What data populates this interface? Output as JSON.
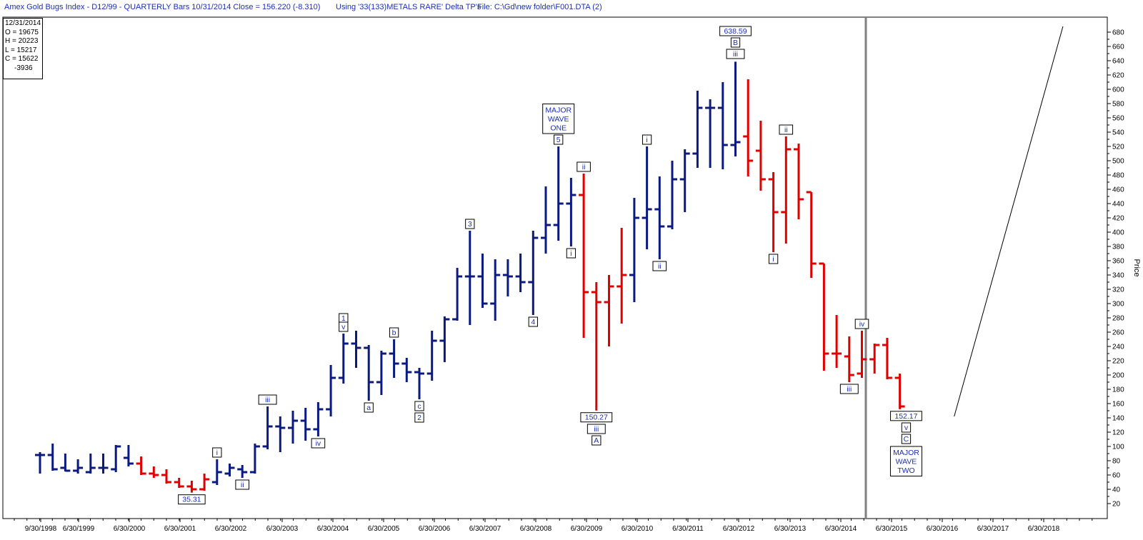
{
  "header": {
    "title": "Amex Gold Bugs Index - D12/99 -  QUARTERLY Bars  10/31/2014 Close = 156.220 (-8.310)",
    "using": "Using '33(133)METALS RARE' Delta TP's",
    "file": "File: C:\\Gd\\new folder\\F001.DTA (2)"
  },
  "ohlc_box": {
    "date": "12/31/2014",
    "open": "O = 19675",
    "high": "H = 20223",
    "low": "L = 15217",
    "close": "C = 15622",
    "change": "-3936"
  },
  "chart_data": {
    "type": "ohlc-bar",
    "ylabel": "Price",
    "ylim": [
      20,
      690
    ],
    "y_ticks": [
      20,
      40,
      60,
      80,
      100,
      120,
      140,
      160,
      180,
      200,
      220,
      240,
      260,
      280,
      300,
      320,
      340,
      360,
      380,
      400,
      420,
      440,
      460,
      480,
      500,
      520,
      540,
      560,
      580,
      600,
      620,
      640,
      660,
      680
    ],
    "x_ticks": [
      "9/30/1998",
      "6/30/1999",
      "6/30/2000",
      "6/30/2001",
      "6/30/2002",
      "6/30/2003",
      "6/30/2004",
      "6/30/2005",
      "6/30/2006",
      "6/30/2007",
      "6/30/2008",
      "6/30/2009",
      "6/30/2010",
      "6/30/2011",
      "6/30/2012",
      "6/30/2013",
      "6/30/2014",
      "6/30/2015",
      "6/30/2016",
      "6/30/2017",
      "6/30/2018"
    ],
    "colors": {
      "up": "#0b1a80",
      "down": "#e00000",
      "divider": "#808080",
      "label": "#1b2fb5"
    },
    "bars": [
      {
        "q": 0,
        "o": 88,
        "h": 92,
        "l": 62,
        "c": 88,
        "color": "up"
      },
      {
        "q": 1,
        "o": 88,
        "h": 104,
        "l": 66,
        "c": 68,
        "color": "up"
      },
      {
        "q": 2,
        "o": 70,
        "h": 90,
        "l": 65,
        "c": 66,
        "color": "up"
      },
      {
        "q": 3,
        "o": 66,
        "h": 82,
        "l": 62,
        "c": 70,
        "color": "up"
      },
      {
        "q": 4,
        "o": 64,
        "h": 90,
        "l": 62,
        "c": 70,
        "color": "up"
      },
      {
        "q": 5,
        "o": 70,
        "h": 90,
        "l": 62,
        "c": 70,
        "color": "up"
      },
      {
        "q": 6,
        "o": 68,
        "h": 102,
        "l": 64,
        "c": 100,
        "color": "up"
      },
      {
        "q": 7,
        "o": 84,
        "h": 102,
        "l": 72,
        "c": 76,
        "color": "up"
      },
      {
        "q": 8,
        "o": 76,
        "h": 86,
        "l": 60,
        "c": 62,
        "color": "down"
      },
      {
        "q": 9,
        "o": 62,
        "h": 72,
        "l": 56,
        "c": 60,
        "color": "down"
      },
      {
        "q": 10,
        "o": 60,
        "h": 68,
        "l": 48,
        "c": 50,
        "color": "down"
      },
      {
        "q": 11,
        "o": 50,
        "h": 56,
        "l": 42,
        "c": 44,
        "color": "down"
      },
      {
        "q": 12,
        "o": 44,
        "h": 52,
        "l": 35.31,
        "c": 40,
        "color": "down"
      },
      {
        "q": 13,
        "o": 40,
        "h": 62,
        "l": 38,
        "c": 54,
        "color": "down"
      },
      {
        "q": 14,
        "o": 50,
        "h": 82,
        "l": 46,
        "c": 64,
        "color": "up"
      },
      {
        "q": 15,
        "o": 62,
        "h": 76,
        "l": 58,
        "c": 70,
        "color": "up"
      },
      {
        "q": 16,
        "o": 68,
        "h": 74,
        "l": 56,
        "c": 64,
        "color": "up"
      },
      {
        "q": 17,
        "o": 64,
        "h": 104,
        "l": 62,
        "c": 100,
        "color": "up"
      },
      {
        "q": 18,
        "o": 100,
        "h": 156,
        "l": 96,
        "c": 128,
        "color": "up"
      },
      {
        "q": 19,
        "o": 128,
        "h": 142,
        "l": 92,
        "c": 126,
        "color": "up"
      },
      {
        "q": 20,
        "o": 126,
        "h": 150,
        "l": 104,
        "c": 136,
        "color": "up"
      },
      {
        "q": 21,
        "o": 136,
        "h": 154,
        "l": 108,
        "c": 124,
        "color": "up"
      },
      {
        "q": 22,
        "o": 124,
        "h": 162,
        "l": 114,
        "c": 152,
        "color": "up"
      },
      {
        "q": 23,
        "o": 152,
        "h": 214,
        "l": 142,
        "c": 196,
        "color": "up"
      },
      {
        "q": 24,
        "o": 196,
        "h": 258,
        "l": 188,
        "c": 244,
        "color": "up"
      },
      {
        "q": 25,
        "o": 244,
        "h": 262,
        "l": 210,
        "c": 238,
        "color": "up"
      },
      {
        "q": 26,
        "o": 238,
        "h": 242,
        "l": 164,
        "c": 190,
        "color": "up"
      },
      {
        "q": 27,
        "o": 190,
        "h": 234,
        "l": 172,
        "c": 230,
        "color": "up"
      },
      {
        "q": 28,
        "o": 230,
        "h": 250,
        "l": 196,
        "c": 216,
        "color": "up"
      },
      {
        "q": 29,
        "o": 216,
        "h": 224,
        "l": 190,
        "c": 204,
        "color": "up"
      },
      {
        "q": 30,
        "o": 204,
        "h": 210,
        "l": 166,
        "c": 202,
        "color": "up"
      },
      {
        "q": 31,
        "o": 202,
        "h": 262,
        "l": 192,
        "c": 248,
        "color": "up"
      },
      {
        "q": 32,
        "o": 248,
        "h": 282,
        "l": 218,
        "c": 278,
        "color": "up"
      },
      {
        "q": 33,
        "o": 278,
        "h": 350,
        "l": 276,
        "c": 338,
        "color": "up"
      },
      {
        "q": 34,
        "o": 338,
        "h": 402,
        "l": 270,
        "c": 338,
        "color": "up"
      },
      {
        "q": 35,
        "o": 338,
        "h": 370,
        "l": 294,
        "c": 300,
        "color": "up"
      },
      {
        "q": 36,
        "o": 300,
        "h": 362,
        "l": 276,
        "c": 340,
        "color": "up"
      },
      {
        "q": 37,
        "o": 340,
        "h": 362,
        "l": 310,
        "c": 338,
        "color": "up"
      },
      {
        "q": 38,
        "o": 338,
        "h": 370,
        "l": 316,
        "c": 330,
        "color": "up"
      },
      {
        "q": 39,
        "o": 330,
        "h": 402,
        "l": 284,
        "c": 392,
        "color": "up"
      },
      {
        "q": 40,
        "o": 392,
        "h": 464,
        "l": 370,
        "c": 410,
        "color": "up"
      },
      {
        "q": 41,
        "o": 410,
        "h": 520,
        "l": 388,
        "c": 440,
        "color": "up"
      },
      {
        "q": 42,
        "o": 440,
        "h": 476,
        "l": 380,
        "c": 452,
        "color": "up"
      },
      {
        "q": 43,
        "o": 452,
        "h": 482,
        "l": 252,
        "c": 316,
        "color": "down"
      },
      {
        "q": 44,
        "o": 316,
        "h": 330,
        "l": 150.27,
        "c": 302,
        "color": "down"
      },
      {
        "q": 45,
        "o": 302,
        "h": 340,
        "l": 240,
        "c": 324,
        "color": "down"
      },
      {
        "q": 46,
        "o": 324,
        "h": 406,
        "l": 272,
        "c": 340,
        "color": "down"
      },
      {
        "q": 47,
        "o": 340,
        "h": 448,
        "l": 302,
        "c": 420,
        "color": "up"
      },
      {
        "q": 48,
        "o": 420,
        "h": 520,
        "l": 376,
        "c": 432,
        "color": "up"
      },
      {
        "q": 49,
        "o": 432,
        "h": 478,
        "l": 362,
        "c": 408,
        "color": "up"
      },
      {
        "q": 50,
        "o": 408,
        "h": 500,
        "l": 404,
        "c": 474,
        "color": "up"
      },
      {
        "q": 51,
        "o": 474,
        "h": 516,
        "l": 428,
        "c": 510,
        "color": "up"
      },
      {
        "q": 52,
        "o": 510,
        "h": 598,
        "l": 490,
        "c": 574,
        "color": "up"
      },
      {
        "q": 53,
        "o": 574,
        "h": 586,
        "l": 490,
        "c": 574,
        "color": "up"
      },
      {
        "q": 54,
        "o": 574,
        "h": 610,
        "l": 488,
        "c": 522,
        "color": "up"
      },
      {
        "q": 55,
        "o": 522,
        "h": 638.59,
        "l": 506,
        "c": 526,
        "color": "up"
      },
      {
        "q": 56,
        "o": 534,
        "h": 614,
        "l": 478,
        "c": 500,
        "color": "down"
      },
      {
        "q": 57,
        "o": 514,
        "h": 556,
        "l": 458,
        "c": 474,
        "color": "down"
      },
      {
        "q": 58,
        "o": 474,
        "h": 484,
        "l": 372,
        "c": 428,
        "color": "down"
      },
      {
        "q": 59,
        "o": 428,
        "h": 534,
        "l": 384,
        "c": 516,
        "color": "down"
      },
      {
        "q": 60,
        "o": 516,
        "h": 524,
        "l": 418,
        "c": 446,
        "color": "down"
      },
      {
        "q": 61,
        "o": 456,
        "h": 456,
        "l": 336,
        "c": 356,
        "color": "down"
      },
      {
        "q": 62,
        "o": 356,
        "h": 356,
        "l": 206,
        "c": 230,
        "color": "down"
      },
      {
        "q": 63,
        "o": 230,
        "h": 284,
        "l": 210,
        "c": 230,
        "color": "down"
      },
      {
        "q": 64,
        "o": 226,
        "h": 254,
        "l": 190,
        "c": 200,
        "color": "down"
      },
      {
        "q": 65,
        "o": 202,
        "h": 262,
        "l": 196,
        "c": 222,
        "color": "down"
      },
      {
        "q": 66,
        "o": 222,
        "h": 244,
        "l": 202,
        "c": 242,
        "color": "down"
      },
      {
        "q": 67,
        "o": 242,
        "h": 252,
        "l": 194,
        "c": 196,
        "color": "down"
      },
      {
        "q": 68,
        "o": 196,
        "h": 202,
        "l": 152.17,
        "c": 156,
        "color": "down"
      }
    ],
    "projection_line": [
      {
        "q": 72.3,
        "y": 142
      },
      {
        "q": 80.9,
        "y": 688
      }
    ],
    "annotations": [
      {
        "text": "35.31",
        "q": 12,
        "y": 35.31,
        "pos": "below"
      },
      {
        "text": "i",
        "q": 14,
        "y": 82,
        "pos": "above"
      },
      {
        "text": "ii",
        "q": 16,
        "y": 56,
        "pos": "below"
      },
      {
        "text": "iii",
        "q": 18,
        "y": 156,
        "pos": "above"
      },
      {
        "text": "iv",
        "q": 22,
        "y": 114,
        "pos": "below"
      },
      {
        "text": "1",
        "q": 24,
        "y": 270,
        "pos": "above"
      },
      {
        "text": "v",
        "q": 24,
        "y": 258,
        "pos": "above"
      },
      {
        "text": "a",
        "q": 26,
        "y": 164,
        "pos": "below"
      },
      {
        "text": "b",
        "q": 28,
        "y": 250,
        "pos": "above"
      },
      {
        "text": "c",
        "q": 30,
        "y": 166,
        "pos": "below"
      },
      {
        "text": "2",
        "q": 30,
        "y": 150,
        "pos": "below"
      },
      {
        "text": "3",
        "q": 34,
        "y": 402,
        "pos": "above"
      },
      {
        "text": "4",
        "q": 39,
        "y": 284,
        "pos": "below"
      },
      {
        "text": "5",
        "q": 41,
        "y": 520,
        "pos": "above"
      },
      {
        "text": "i",
        "q": 42,
        "y": 380,
        "pos": "below"
      },
      {
        "text": "ii",
        "q": 43,
        "y": 482,
        "pos": "above"
      },
      {
        "text": "150.27",
        "q": 44,
        "y": 150.27,
        "pos": "below"
      },
      {
        "text": "iii",
        "q": 44,
        "y": 134,
        "pos": "below"
      },
      {
        "text": "A",
        "q": 44,
        "y": 118,
        "pos": "below"
      },
      {
        "text": "i",
        "q": 48,
        "y": 520,
        "pos": "above"
      },
      {
        "text": "ii",
        "q": 49,
        "y": 362,
        "pos": "below"
      },
      {
        "text": "638.59",
        "q": 55,
        "y": 672,
        "pos": "above"
      },
      {
        "text": "B",
        "q": 55,
        "y": 656,
        "pos": "above"
      },
      {
        "text": "iii",
        "q": 55,
        "y": 640,
        "pos": "above"
      },
      {
        "text": "i",
        "q": 58,
        "y": 372,
        "pos": "below"
      },
      {
        "text": "ii",
        "q": 59,
        "y": 534,
        "pos": "above"
      },
      {
        "text": "iii",
        "q": 64,
        "y": 190,
        "pos": "below"
      },
      {
        "text": "iv",
        "q": 65,
        "y": 262,
        "pos": "above"
      },
      {
        "text": "152.17",
        "q": 68.5,
        "y": 152.17,
        "pos": "below"
      },
      {
        "text": "v",
        "q": 68.5,
        "y": 136,
        "pos": "below"
      },
      {
        "text": "C",
        "q": 68.5,
        "y": 120,
        "pos": "below"
      }
    ],
    "multiline_labels": [
      {
        "lines": [
          "MAJOR",
          "WAVE",
          "ONE"
        ],
        "q": 41,
        "y": 535,
        "pos": "above"
      },
      {
        "lines": [
          "MAJOR",
          "WAVE",
          "TWO"
        ],
        "q": 68.5,
        "y": 103,
        "pos": "below"
      }
    ]
  }
}
